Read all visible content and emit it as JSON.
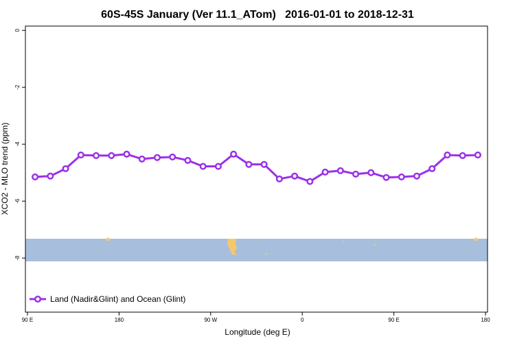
{
  "chart_data": {
    "type": "line",
    "title": "60S-45S January (Ver 11.1_ATom)   2016-01-01 to 2018-12-31",
    "x_label": "Longitude (deg E)",
    "y_label": "XCO2 - MLO trend (ppm)",
    "x": [
      97.5,
      112.5,
      127.5,
      142.5,
      157.5,
      172.5,
      187.5,
      202.5,
      217.5,
      232.5,
      247.5,
      262.5,
      277.5,
      292.5,
      307.5,
      322.5,
      337.5,
      352.5,
      367.5,
      382.5,
      397.5,
      412.5,
      427.5,
      442.5,
      457.5,
      472.5,
      487.5,
      502.5,
      517.5,
      532.5
    ],
    "series": [
      {
        "name": "Land (Nadir&Glint) and Ocean (Glint)",
        "color": "#9b30e8",
        "values": [
          -5.15,
          -5.12,
          -4.86,
          -4.38,
          -4.4,
          -4.4,
          -4.35,
          -4.52,
          -4.47,
          -4.45,
          -4.57,
          -4.78,
          -4.78,
          -4.35,
          -4.71,
          -4.71,
          -5.22,
          -5.12,
          -5.31,
          -4.98,
          -4.93,
          -5.05,
          -5.0,
          -5.17,
          -5.15,
          -5.12,
          -4.86,
          -4.38,
          -4.4,
          -4.38
        ]
      }
    ],
    "xlim": [
      88,
      542
    ],
    "xticks": [
      {
        "value": 90,
        "label": "90 E"
      },
      180,
      {
        "value": 270,
        "label": "90 W"
      },
      {
        "value": 360,
        "label": "0"
      },
      {
        "value": 450,
        "label": "90 E"
      },
      {
        "value": 540,
        "label": "180"
      }
    ],
    "ylim": [
      -9.9,
      0.15
    ],
    "yticks": [
      0,
      -2,
      -4,
      -6,
      -8
    ],
    "legend": "bottom-left"
  }
}
